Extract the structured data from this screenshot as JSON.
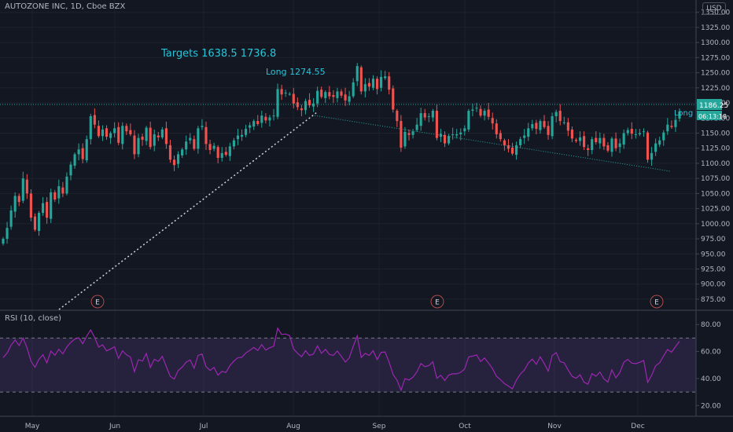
{
  "symbol_title": "AUTOZONE INC, 1D, Cboe BZX",
  "currency_badge": "USD",
  "rsi_title": "RSI (10, close)",
  "price_label": "1186.25",
  "countdown_label": "06:13:18",
  "annotations": {
    "targets": "Targets 1638.5  1736.8",
    "long_entry": "Long 1274.55",
    "long_tag": "Long"
  },
  "earnings_marker": "E",
  "colors": {
    "background": "#131722",
    "grid": "#1e222d",
    "up": "#26a69a",
    "down": "#ef5350",
    "rsi_line": "#9c27b0",
    "rsi_band": "#7e57c2",
    "annotation": "#26c6da",
    "axis_text": "#b2b5be"
  },
  "chart_data": [
    {
      "type": "candlestick",
      "title": "AUTOZONE INC, 1D, Cboe BZX",
      "x_tick_labels": [
        "May",
        "Jun",
        "Jul",
        "Aug",
        "Sep",
        "Oct",
        "Nov",
        "Dec"
      ],
      "y_tick_labels": [
        "875.00",
        "900.00",
        "925.00",
        "950.00",
        "975.00",
        "1000.00",
        "1025.00",
        "1050.00",
        "1075.00",
        "1100.00",
        "1125.00",
        "1150.00",
        "1175.00",
        "1200.00",
        "1225.00",
        "1250.00",
        "1275.00",
        "1300.00",
        "1325.00",
        "1350.00"
      ],
      "ylim": [
        858,
        1360
      ],
      "last_price": 1186.25,
      "closes": [
        975,
        993,
        1022,
        1046,
        1036,
        1075,
        1050,
        1010,
        990,
        1018,
        1034,
        1010,
        1052,
        1040,
        1062,
        1050,
        1078,
        1098,
        1115,
        1123,
        1107,
        1140,
        1178,
        1164,
        1145,
        1156,
        1144,
        1150,
        1158,
        1134,
        1162,
        1153,
        1148,
        1115,
        1142,
        1139,
        1159,
        1127,
        1148,
        1143,
        1156,
        1132,
        1106,
        1097,
        1115,
        1123,
        1136,
        1142,
        1124,
        1158,
        1162,
        1132,
        1122,
        1129,
        1109,
        1117,
        1114,
        1128,
        1138,
        1146,
        1147,
        1157,
        1163,
        1170,
        1165,
        1179,
        1171,
        1176,
        1179,
        1223,
        1214,
        1217,
        1215,
        1199,
        1193,
        1188,
        1203,
        1196,
        1199,
        1220,
        1210,
        1218,
        1211,
        1210,
        1219,
        1212,
        1204,
        1211,
        1234,
        1261,
        1219,
        1231,
        1227,
        1240,
        1223,
        1243,
        1244,
        1222,
        1189,
        1170,
        1126,
        1152,
        1147,
        1153,
        1164,
        1183,
        1176,
        1178,
        1187,
        1142,
        1149,
        1133,
        1145,
        1148,
        1148,
        1151,
        1158,
        1187,
        1189,
        1192,
        1179,
        1187,
        1177,
        1166,
        1148,
        1140,
        1130,
        1124,
        1116,
        1130,
        1140,
        1146,
        1158,
        1165,
        1157,
        1170,
        1160,
        1147,
        1178,
        1185,
        1170,
        1168,
        1154,
        1141,
        1137,
        1143,
        1127,
        1122,
        1140,
        1135,
        1142,
        1128,
        1121,
        1141,
        1125,
        1133,
        1150,
        1155,
        1149,
        1148,
        1150,
        1153,
        1106,
        1117,
        1133,
        1138,
        1151,
        1164,
        1160,
        1172,
        1186
      ]
    },
    {
      "type": "line",
      "title": "RSI (10, close)",
      "y_tick_labels": [
        "20.00",
        "40.00",
        "60.00",
        "80.00"
      ],
      "ylim": [
        12,
        90
      ],
      "bands": [
        30,
        70
      ],
      "values": [
        55.5,
        58.9,
        64.6,
        68.6,
        64.4,
        70.1,
        62.7,
        52.8,
        48.3,
        54.2,
        57.6,
        51.6,
        60.3,
        57.2,
        61.7,
        58.3,
        63.4,
        66.8,
        69.2,
        70.2,
        65.7,
        71.4,
        76.0,
        70.4,
        63.3,
        65.0,
        60.5,
        61.9,
        63.5,
        54.9,
        60.5,
        57.6,
        55.9,
        45.0,
        53.9,
        52.9,
        58.5,
        48.2,
        54.3,
        52.7,
        56.4,
        48.9,
        41.6,
        39.6,
        45.9,
        48.4,
        52.1,
        53.8,
        47.7,
        57.2,
        58.1,
        48.8,
        46.0,
        48.2,
        42.5,
        45.3,
        44.5,
        49.6,
        52.9,
        55.4,
        55.7,
        59.0,
        60.9,
        63.0,
        60.8,
        65.1,
        61.0,
        62.8,
        63.9,
        77.3,
        72.6,
        73.0,
        71.8,
        61.9,
        58.7,
        56.1,
        60.6,
        57.1,
        58.1,
        64.2,
        58.7,
        61.6,
        57.8,
        57.2,
        60.4,
        56.4,
        52.2,
        55.3,
        64.0,
        71.6,
        55.6,
        58.6,
        57.1,
        60.6,
        54.0,
        59.4,
        59.7,
        52.3,
        43.0,
        38.7,
        31.3,
        39.9,
        38.9,
        41.0,
        44.9,
        51.1,
        48.8,
        49.6,
        52.4,
        40.2,
        42.4,
        38.5,
        42.6,
        43.5,
        43.5,
        44.6,
        47.1,
        56.0,
        56.6,
        57.5,
        52.6,
        55.2,
        51.4,
        47.4,
        41.6,
        39.1,
        36.2,
        34.4,
        32.3,
        38.8,
        43.3,
        46.2,
        51.5,
        54.4,
        50.5,
        56.0,
        51.1,
        45.4,
        57.0,
        59.2,
        52.5,
        51.7,
        46.3,
        41.6,
        40.2,
        42.8,
        37.3,
        35.8,
        43.6,
        41.7,
        44.8,
        39.7,
        37.3,
        46.4,
        40.5,
        44.4,
        52.0,
        54.2,
        51.4,
        51.0,
        52.0,
        53.4,
        37.1,
        42.4,
        49.4,
        51.6,
        56.9,
        61.5,
        59.5,
        63.6,
        67.6
      ]
    }
  ]
}
